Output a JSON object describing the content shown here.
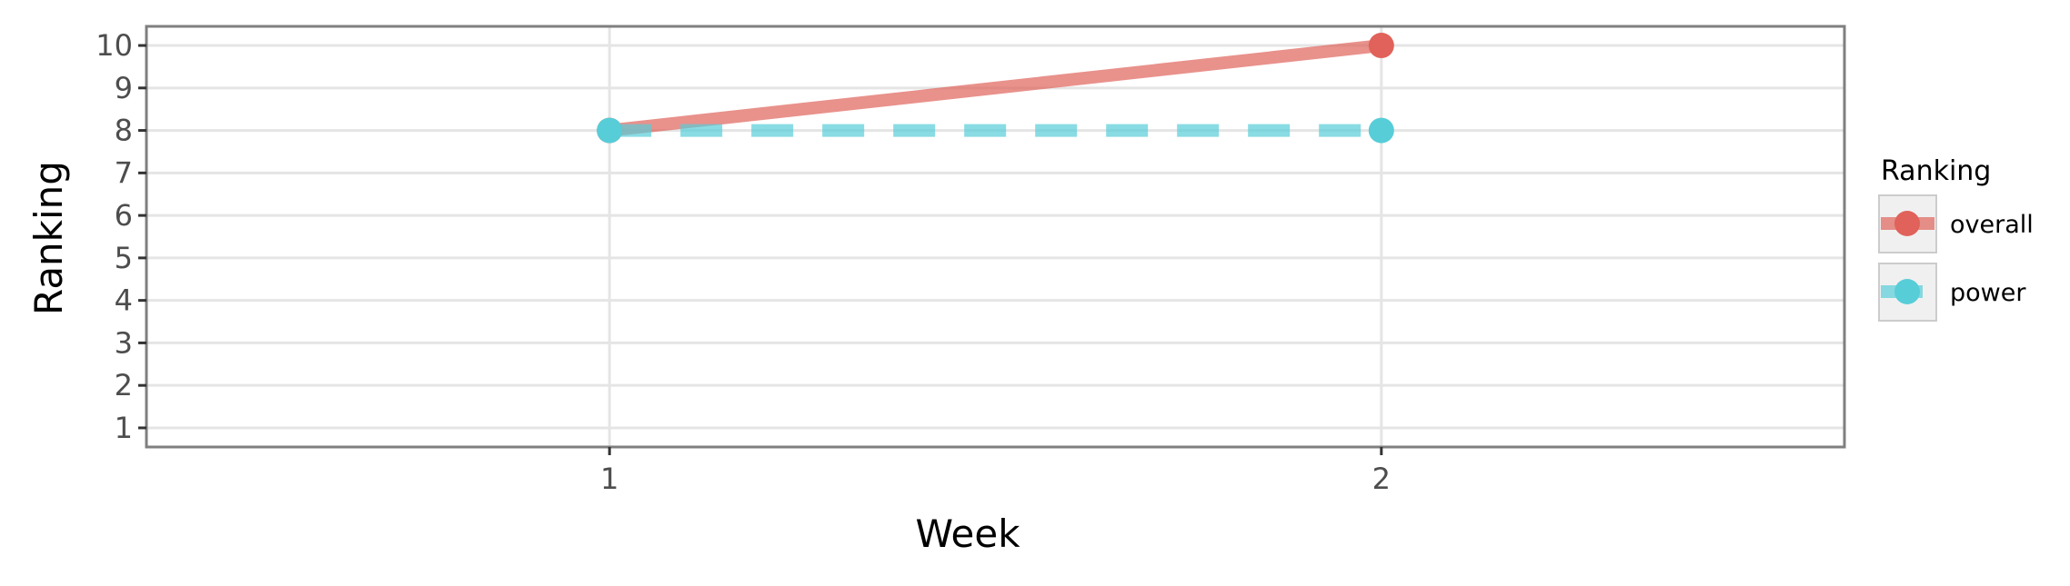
{
  "chart_data": {
    "type": "line",
    "xlabel": "Week",
    "ylabel": "Ranking",
    "x": [
      1,
      2
    ],
    "x_ticks": [
      "1",
      "2"
    ],
    "xlim": [
      0.4,
      2.6
    ],
    "y_ticks": [
      "1",
      "2",
      "3",
      "4",
      "5",
      "6",
      "7",
      "8",
      "9",
      "10"
    ],
    "ylim": [
      10.45,
      0.55
    ],
    "y_reversed": true,
    "grid": true,
    "legend": {
      "title": "Ranking",
      "placement": "right"
    },
    "series": [
      {
        "name": "overall",
        "values": [
          8,
          10
        ],
        "color": "#e0625a",
        "line_style": "solid"
      },
      {
        "name": "power",
        "values": [
          8,
          8
        ],
        "color": "#57cdd8",
        "line_style": "dashed"
      }
    ]
  }
}
